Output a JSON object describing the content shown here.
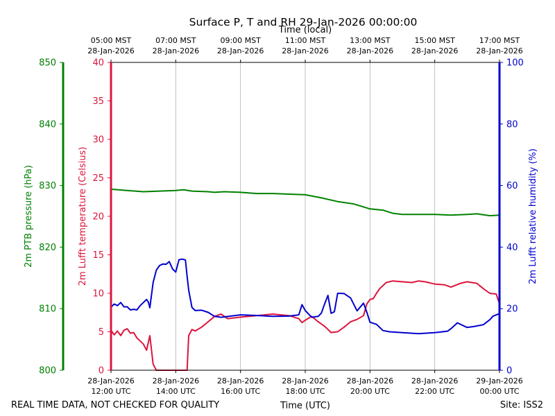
{
  "chart_data": {
    "type": "line",
    "title": "Surface P, T and RH 29-Jan-2026 00:00:00",
    "xlabel_top": "Time (local)",
    "xlabel_bottom": "Time (UTC)",
    "x_range_hours_utc": [
      12,
      24
    ],
    "top_ticks": [
      {
        "h": 12,
        "l1": "05:00 MST",
        "l2": "28-Jan-2026"
      },
      {
        "h": 14,
        "l1": "07:00 MST",
        "l2": "28-Jan-2026"
      },
      {
        "h": 16,
        "l1": "09:00 MST",
        "l2": "28-Jan-2026"
      },
      {
        "h": 18,
        "l1": "11:00 MST",
        "l2": "28-Jan-2026"
      },
      {
        "h": 20,
        "l1": "13:00 MST",
        "l2": "28-Jan-2026"
      },
      {
        "h": 22,
        "l1": "15:00 MST",
        "l2": "28-Jan-2026"
      },
      {
        "h": 24,
        "l1": "17:00 MST",
        "l2": "28-Jan-2026"
      }
    ],
    "bottom_ticks": [
      {
        "h": 12,
        "l1": "28-Jan-2026",
        "l2": "12:00 UTC"
      },
      {
        "h": 14,
        "l1": "28-Jan-2026",
        "l2": "14:00 UTC"
      },
      {
        "h": 16,
        "l1": "28-Jan-2026",
        "l2": "16:00 UTC"
      },
      {
        "h": 18,
        "l1": "28-Jan-2026",
        "l2": "18:00 UTC"
      },
      {
        "h": 20,
        "l1": "28-Jan-2026",
        "l2": "20:00 UTC"
      },
      {
        "h": 22,
        "l1": "28-Jan-2026",
        "l2": "22:00 UTC"
      },
      {
        "h": 24,
        "l1": "29-Jan-2026",
        "l2": "00:00 UTC"
      }
    ],
    "axes": {
      "pressure": {
        "label": "2m PTB pressure (hPa)",
        "range": [
          800,
          850
        ],
        "ticks": [
          800,
          810,
          820,
          830,
          840,
          850
        ],
        "color": "#008000"
      },
      "temperature": {
        "label": "2m Lufft temperature (Celsius)",
        "range": [
          0,
          40
        ],
        "ticks": [
          0,
          5,
          10,
          15,
          20,
          25,
          30,
          35,
          40
        ],
        "color": "#dc143c"
      },
      "humidity": {
        "label": "2m Lufft relative humidity (%)",
        "range": [
          0,
          100
        ],
        "ticks": [
          0,
          20,
          40,
          60,
          80,
          100
        ],
        "color": "#0000cd"
      }
    },
    "grid": "vertical",
    "series": [
      {
        "name": "2m PTB pressure",
        "axis": "pressure",
        "color": "#008000",
        "x": [
          12.0,
          12.5,
          13.0,
          13.5,
          14.0,
          14.25,
          14.5,
          15.0,
          15.2,
          15.5,
          16.0,
          16.5,
          17.0,
          17.5,
          18.0,
          18.5,
          19.0,
          19.5,
          20.0,
          20.4,
          20.7,
          21.0,
          21.5,
          22.0,
          22.5,
          23.0,
          23.3,
          23.7,
          24.0
        ],
        "values": [
          829.4,
          829.2,
          829.0,
          829.1,
          829.2,
          829.3,
          829.1,
          829.0,
          828.9,
          829.0,
          828.9,
          828.7,
          828.7,
          828.6,
          828.5,
          828.0,
          827.4,
          827.0,
          826.2,
          826.0,
          825.5,
          825.3,
          825.3,
          825.3,
          825.2,
          825.3,
          825.4,
          825.1,
          825.2
        ]
      },
      {
        "name": "2m Lufft temperature",
        "axis": "temperature",
        "color": "#dc143c",
        "x": [
          12.0,
          12.1,
          12.2,
          12.3,
          12.4,
          12.5,
          12.6,
          12.7,
          12.8,
          12.9,
          13.0,
          13.1,
          13.2,
          13.3,
          13.4,
          13.45,
          13.5,
          13.55,
          13.6,
          14.3,
          14.35,
          14.4,
          14.5,
          14.6,
          14.8,
          15.0,
          15.2,
          15.4,
          15.6,
          16.0,
          16.5,
          17.0,
          17.5,
          17.8,
          17.9,
          18.0,
          18.2,
          18.4,
          18.6,
          18.8,
          19.0,
          19.2,
          19.4,
          19.6,
          19.8,
          19.9,
          20.0,
          20.1,
          20.2,
          20.3,
          20.5,
          20.7,
          21.0,
          21.3,
          21.5,
          21.7,
          22.0,
          22.3,
          22.5,
          22.8,
          23.0,
          23.3,
          23.5,
          23.7,
          23.9,
          24.0
        ],
        "values": [
          5.2,
          4.6,
          5.1,
          4.5,
          5.2,
          5.4,
          4.8,
          4.9,
          4.2,
          3.8,
          3.4,
          2.6,
          4.5,
          0.8,
          0.0,
          0.0,
          0.0,
          0.0,
          0.0,
          0.0,
          0.0,
          4.5,
          5.3,
          5.1,
          5.6,
          6.3,
          7.0,
          7.3,
          6.7,
          6.9,
          7.1,
          7.3,
          7.1,
          6.7,
          6.2,
          6.5,
          7.0,
          6.3,
          5.7,
          4.9,
          5.0,
          5.6,
          6.3,
          6.6,
          7.1,
          8.6,
          9.2,
          9.3,
          10.0,
          10.6,
          11.4,
          11.6,
          11.5,
          11.4,
          11.6,
          11.5,
          11.2,
          11.1,
          10.8,
          11.3,
          11.5,
          11.3,
          10.6,
          10.0,
          9.9,
          8.6
        ]
      },
      {
        "name": "2m Lufft relative humidity",
        "axis": "humidity",
        "color": "#0000cd",
        "x": [
          12.0,
          12.1,
          12.2,
          12.3,
          12.4,
          12.5,
          12.6,
          12.7,
          12.8,
          12.9,
          13.0,
          13.1,
          13.15,
          13.2,
          13.3,
          13.4,
          13.5,
          13.6,
          13.7,
          13.8,
          13.9,
          14.0,
          14.1,
          14.2,
          14.3,
          14.35,
          14.4,
          14.5,
          14.6,
          14.8,
          15.0,
          15.2,
          15.4,
          16.0,
          16.5,
          17.0,
          17.5,
          17.8,
          17.9,
          18.0,
          18.2,
          18.4,
          18.5,
          18.6,
          18.7,
          18.8,
          18.9,
          19.0,
          19.2,
          19.4,
          19.6,
          19.8,
          19.9,
          20.0,
          20.2,
          20.4,
          20.6,
          21.0,
          21.5,
          22.0,
          22.4,
          22.5,
          22.7,
          23.0,
          23.2,
          23.5,
          23.7,
          23.8,
          24.0
        ],
        "values": [
          20.5,
          21.5,
          21.0,
          22.0,
          20.6,
          20.6,
          19.6,
          19.8,
          19.6,
          21.0,
          22.0,
          23.0,
          22.2,
          20.3,
          28.5,
          32.5,
          34.0,
          34.5,
          34.4,
          35.3,
          32.9,
          31.9,
          35.9,
          36.1,
          35.8,
          30.5,
          26.0,
          20.4,
          19.4,
          19.5,
          18.8,
          17.5,
          17.2,
          18.0,
          17.8,
          17.5,
          17.6,
          18.0,
          21.3,
          19.4,
          17.2,
          17.5,
          18.6,
          21.6,
          24.3,
          18.5,
          19.0,
          25.0,
          24.9,
          23.5,
          19.3,
          21.8,
          18.9,
          15.6,
          14.9,
          12.9,
          12.5,
          12.2,
          11.9,
          12.2,
          12.7,
          13.5,
          15.4,
          13.9,
          14.2,
          14.8,
          16.4,
          17.6,
          18.4
        ]
      }
    ]
  },
  "footer": {
    "disclaimer": "REAL TIME DATA, NOT CHECKED FOR QUALITY",
    "site": "Site: ISS2"
  }
}
